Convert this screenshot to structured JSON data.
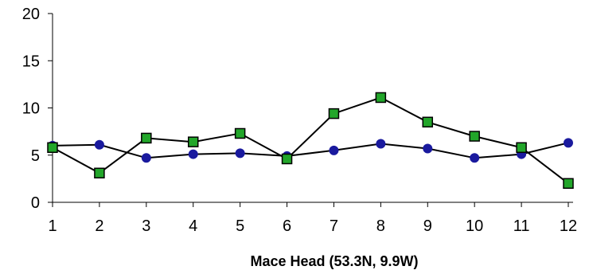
{
  "chart_data": {
    "type": "line",
    "title": "",
    "xlabel": "Mace Head (53.3N, 9.9W)",
    "ylabel": "",
    "x": [
      1,
      2,
      3,
      4,
      5,
      6,
      7,
      8,
      9,
      10,
      11,
      12
    ],
    "x_tick_labels": [
      "1",
      "2",
      "3",
      "4",
      "5",
      "6",
      "7",
      "8",
      "9",
      "10",
      "11",
      "12"
    ],
    "y_tick_labels": [
      "0",
      "5",
      "10",
      "15",
      "20"
    ],
    "y_ticks": [
      0,
      5,
      10,
      15,
      20
    ],
    "ylim": [
      0,
      20
    ],
    "xlim": [
      1,
      12
    ],
    "grid": false,
    "legend": "none",
    "series": [
      {
        "marker": "circle",
        "color": "#1a1a9e",
        "line_color": "#000000",
        "values": [
          6.0,
          6.1,
          4.7,
          5.1,
          5.2,
          4.9,
          5.5,
          6.2,
          5.7,
          4.7,
          5.1,
          6.3
        ]
      },
      {
        "marker": "square",
        "color": "#22a62a",
        "line_color": "#000000",
        "values": [
          5.8,
          3.1,
          6.8,
          6.4,
          7.3,
          4.6,
          9.4,
          11.1,
          8.5,
          7.0,
          5.8,
          2.0
        ]
      }
    ]
  }
}
